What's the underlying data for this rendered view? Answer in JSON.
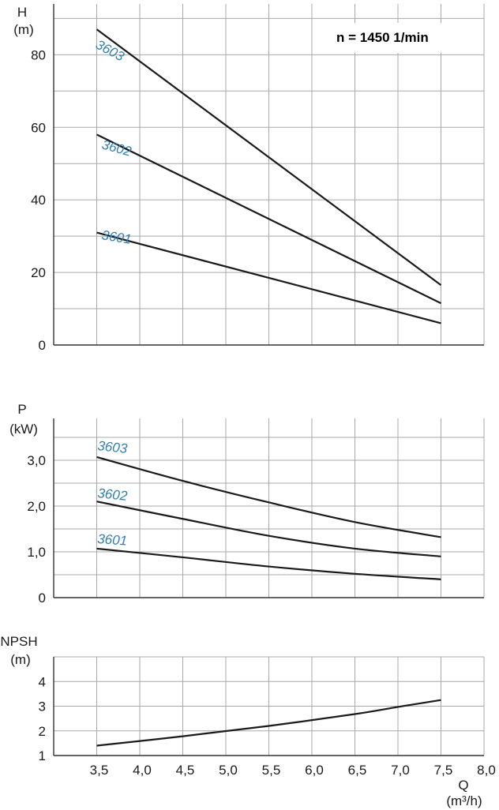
{
  "chart_data": [
    {
      "type": "line",
      "id": "head",
      "ylabel": "H",
      "yunit": "(m)",
      "annotation": "n = 1450 1/min",
      "xlim": [
        3.0,
        8.0
      ],
      "ylim": [
        0,
        94
      ],
      "yticks": [
        0,
        20,
        40,
        60,
        80
      ],
      "ytick_labels": [
        "0",
        "20",
        "40",
        "60",
        "80"
      ],
      "ygrid": [
        0,
        10,
        20,
        30,
        40,
        50,
        60,
        70,
        80,
        90
      ],
      "grid": true,
      "series": [
        {
          "name": "3603",
          "x": [
            3.5,
            7.5
          ],
          "y": [
            87,
            16.5
          ]
        },
        {
          "name": "3602",
          "x": [
            3.5,
            7.5
          ],
          "y": [
            58,
            11.5
          ]
        },
        {
          "name": "3601",
          "x": [
            3.5,
            7.5
          ],
          "y": [
            31,
            6
          ]
        }
      ]
    },
    {
      "type": "line",
      "id": "power",
      "ylabel": "P",
      "yunit": "(kW)",
      "xlim": [
        3.0,
        8.0
      ],
      "ylim": [
        0,
        3.7
      ],
      "yticks": [
        0,
        1,
        2,
        3
      ],
      "ytick_labels": [
        "0",
        "1,0",
        "2,0",
        "3,0"
      ],
      "ygrid": [
        0,
        0.5,
        1,
        1.5,
        2,
        2.5,
        3,
        3.5
      ],
      "grid": true,
      "series": [
        {
          "name": "3603",
          "x": [
            3.5,
            4.5,
            5.5,
            6.5,
            7.5
          ],
          "y": [
            3.07,
            2.55,
            2.08,
            1.65,
            1.32
          ]
        },
        {
          "name": "3602",
          "x": [
            3.5,
            4.5,
            5.5,
            6.5,
            7.5
          ],
          "y": [
            2.1,
            1.72,
            1.35,
            1.07,
            0.9
          ]
        },
        {
          "name": "3601",
          "x": [
            3.5,
            4.5,
            5.5,
            6.5,
            7.5
          ],
          "y": [
            1.07,
            0.88,
            0.68,
            0.52,
            0.4
          ]
        }
      ]
    },
    {
      "type": "line",
      "id": "npsh",
      "ylabel": "NPSH",
      "yunit": "(m)",
      "xlabel": "Q",
      "xunit": "(m³/h)",
      "xlim": [
        3.0,
        8.0
      ],
      "ylim": [
        1,
        5
      ],
      "yticks": [
        1,
        2,
        3,
        4
      ],
      "ytick_labels": [
        "1",
        "2",
        "3",
        "4"
      ],
      "ygrid": [
        1,
        2,
        3,
        4,
        5
      ],
      "xticks": [
        3.5,
        4.0,
        4.5,
        5.0,
        5.5,
        6.0,
        6.5,
        7.0,
        7.5,
        8.0
      ],
      "xtick_labels": [
        "3,5",
        "4,0",
        "4,5",
        "5,0",
        "5,5",
        "6,0",
        "6,5",
        "7,0",
        "7,5",
        "8,0"
      ],
      "grid": true,
      "series": [
        {
          "x": [
            3.5,
            4.5,
            5.5,
            6.5,
            7.0,
            7.5
          ],
          "y": [
            1.4,
            1.78,
            2.2,
            2.68,
            2.97,
            3.25
          ]
        }
      ]
    }
  ]
}
